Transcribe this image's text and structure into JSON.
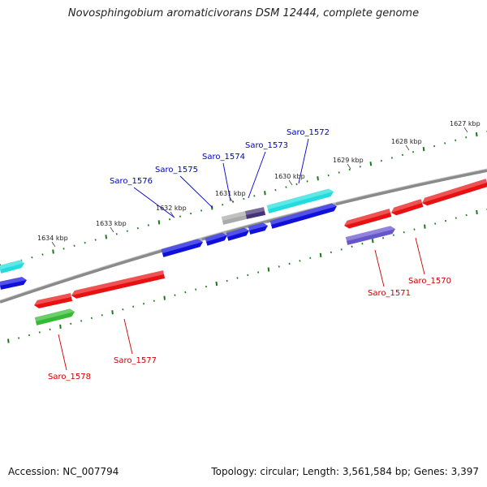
{
  "title": "Novosphingobium aromaticivorans DSM 12444, complete genome",
  "footer": {
    "accession": "Accession: NC_007794",
    "summary": "Topology: circular; Length: 3,561,584 bp; Genes: 3,397"
  },
  "colors": {
    "forward_label": "#0000cc",
    "reverse_label": "#cc0000",
    "backbone": "#777777",
    "tick": "#1a7a1a",
    "red_gene": "#e81010",
    "blue_gene": "#1010dd",
    "cyan_gene": "#22dddd",
    "green_gene": "#33bb33",
    "purple_gene": "#6655cc",
    "gray_gene": "#aaaaaa",
    "darkpurple_gene": "#443377"
  },
  "kbp_labels": [
    "1634 kbp",
    "1633 kbp",
    "1632 kbp",
    "1631 kbp",
    "1630 kbp",
    "1629 kbp",
    "1628 kbp",
    "1627 kbp"
  ],
  "genes": [
    {
      "name": "Saro_1570",
      "strand": "reverse"
    },
    {
      "name": "Saro_1571",
      "strand": "reverse"
    },
    {
      "name": "Saro_1572",
      "strand": "forward"
    },
    {
      "name": "Saro_1573",
      "strand": "forward"
    },
    {
      "name": "Saro_1574",
      "strand": "forward"
    },
    {
      "name": "Saro_1575",
      "strand": "forward"
    },
    {
      "name": "Saro_1576",
      "strand": "forward"
    },
    {
      "name": "Saro_1577",
      "strand": "reverse"
    },
    {
      "name": "Saro_1578",
      "strand": "reverse"
    }
  ]
}
